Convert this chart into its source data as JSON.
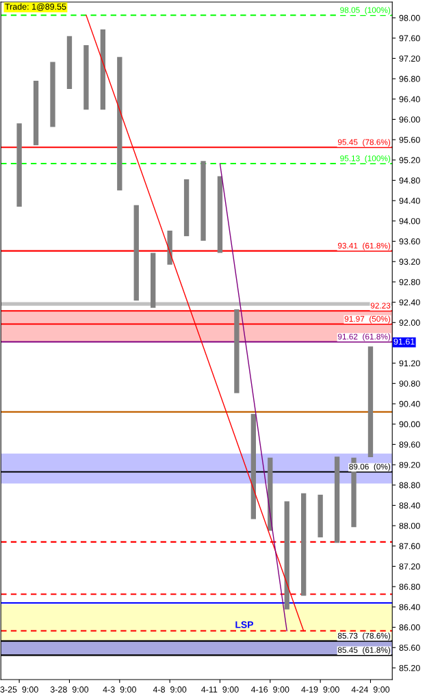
{
  "chart_data": {
    "type": "bar",
    "categories": [
      "3-25  9:00",
      null,
      null,
      "3-28  9:00",
      null,
      null,
      "4-3  9:00",
      null,
      null,
      "4-8  9:00",
      null,
      null,
      "4-11  9:00",
      null,
      null,
      "4-16  9:00",
      null,
      null,
      "4-19  9:00",
      null,
      null,
      "4-24  9:00"
    ],
    "series": [
      {
        "color": "#808080",
        "base": [
          94.28,
          95.49,
          95.85,
          96.6,
          96.19,
          96.19,
          94.6,
          92.43,
          92.29,
          93.14,
          93.7,
          93.61,
          93.37,
          90.61,
          88.13,
          87.9,
          86.35,
          86.62,
          87.77,
          87.66,
          87.97,
          89.35
        ],
        "values": [
          1.64,
          1.27,
          1.28,
          1.04,
          1.27,
          1.58,
          2.63,
          1.88,
          1.08,
          0.67,
          1.12,
          1.57,
          1.51,
          1.65,
          2.07,
          1.44,
          2.13,
          2.02,
          0.84,
          1.7,
          1.37,
          2.18
        ]
      },
      {
        "type": "line",
        "color": "#ff0000",
        "values": [
          null,
          null,
          null,
          null,
          98.05,
          null,
          null,
          null,
          null,
          null,
          null,
          null,
          null,
          null,
          null,
          null,
          null,
          85.93,
          null,
          null,
          null,
          null
        ]
      },
      {
        "type": "line",
        "color": "#800080",
        "values": [
          null,
          null,
          null,
          null,
          null,
          null,
          null,
          null,
          null,
          null,
          null,
          null,
          95.13,
          null,
          null,
          null,
          85.93,
          null,
          null,
          null,
          null,
          null
        ]
      }
    ],
    "ylim": [
      84.97,
      98.31
    ],
    "yticks": [
      {
        "value": 85.2,
        "label": "85.20"
      },
      {
        "value": 85.6,
        "label": "85.60"
      },
      {
        "value": 86.0,
        "label": "86.00"
      },
      {
        "value": 86.4,
        "label": "86.40"
      },
      {
        "value": 86.8,
        "label": "86.80"
      },
      {
        "value": 87.2,
        "label": "87.20"
      },
      {
        "value": 87.6,
        "label": "87.60"
      },
      {
        "value": 88.0,
        "label": "88.00"
      },
      {
        "value": 88.4,
        "label": "88.40"
      },
      {
        "value": 88.8,
        "label": "88.80"
      },
      {
        "value": 89.2,
        "label": "89.20"
      },
      {
        "value": 89.6,
        "label": "89.60"
      },
      {
        "value": 90.0,
        "label": "90.00"
      },
      {
        "value": 90.4,
        "label": "90.40"
      },
      {
        "value": 90.8,
        "label": "90.80"
      },
      {
        "value": 91.2,
        "label": "91.20"
      },
      {
        "value": 92.0,
        "label": "92.00"
      },
      {
        "value": 92.4,
        "label": "92.40"
      },
      {
        "value": 92.8,
        "label": "92.80"
      },
      {
        "value": 93.2,
        "label": "93.20"
      },
      {
        "value": 93.6,
        "label": "93.60"
      },
      {
        "value": 94.0,
        "label": "94.00"
      },
      {
        "value": 94.4,
        "label": "94.40"
      },
      {
        "value": 94.8,
        "label": "94.80"
      },
      {
        "value": 95.2,
        "label": "95.20"
      },
      {
        "value": 95.6,
        "label": "95.60"
      },
      {
        "value": 96.0,
        "label": "96.00"
      },
      {
        "value": 96.4,
        "label": "96.40"
      },
      {
        "value": 96.8,
        "label": "96.80"
      },
      {
        "value": 97.2,
        "label": "97.20"
      },
      {
        "value": 97.6,
        "label": "97.60"
      },
      {
        "value": 98.0,
        "label": "98.00"
      }
    ],
    "ref_lines": [
      {
        "axis": "y",
        "value": 98.05,
        "label": "98.05  (100%)",
        "color": "#00ff00",
        "line_style": "dashed"
      },
      {
        "axis": "y",
        "value": 95.45,
        "label": "95.45  (78.6%)",
        "color": "#ff0000"
      },
      {
        "axis": "y",
        "value": 95.13,
        "label": "95.13  (100%)",
        "color": "#00ff00",
        "line_style": "dashed"
      },
      {
        "axis": "y",
        "value": 93.41,
        "label": "93.41  (61.8%)",
        "color": "#ff0000"
      },
      {
        "axis": "y",
        "value": 92.23,
        "label": "92.23",
        "color": "#ff0000"
      },
      {
        "axis": "y",
        "value": 91.97,
        "label": "91.97  (50%)",
        "color": "#ff0000"
      },
      {
        "axis": "y",
        "value": 91.62,
        "label": "91.62  (61.8%)",
        "color": "#800080"
      },
      {
        "axis": "y",
        "value": 90.24,
        "color": "#c06000"
      },
      {
        "axis": "y",
        "value": 89.06,
        "label": "89.06  (0%)",
        "color": "#000000"
      },
      {
        "axis": "y",
        "value": 87.68,
        "color": "#ff0000",
        "line_style": "dashed"
      },
      {
        "axis": "y",
        "value": 86.65,
        "color": "#ff0000",
        "line_style": "dashed"
      },
      {
        "axis": "y",
        "value": 86.48,
        "color": "#0000ff"
      },
      {
        "axis": "y",
        "value": 85.93,
        "color": "#ff0000",
        "line_style": "dashed"
      },
      {
        "axis": "y",
        "value": 85.73,
        "label": "85.73  (78.6%)",
        "color": "#000000"
      },
      {
        "axis": "y",
        "value": 85.45,
        "label": "85.45  (61.8%)",
        "color": "#000000"
      }
    ],
    "bands": [
      {
        "axis": "y",
        "from": 92.33,
        "to": 92.4,
        "color": "#c0c0c0"
      },
      {
        "axis": "y",
        "from": 91.62,
        "to": 92.23,
        "color": "#ffc0c0"
      },
      {
        "axis": "y",
        "from": 88.83,
        "to": 89.42,
        "color": "#c0c0ff"
      },
      {
        "axis": "y",
        "from": 85.62,
        "to": 86.45,
        "label": "LSP",
        "color": "#ffffc0"
      },
      {
        "axis": "y",
        "from": 85.45,
        "to": 85.73,
        "color": "#a8a8e0"
      }
    ],
    "annotations": [
      "Trade: 1@89.55",
      {
        "text": "91.61",
        "y": 91.61
      }
    ],
    "grid": false,
    "legend": false
  }
}
